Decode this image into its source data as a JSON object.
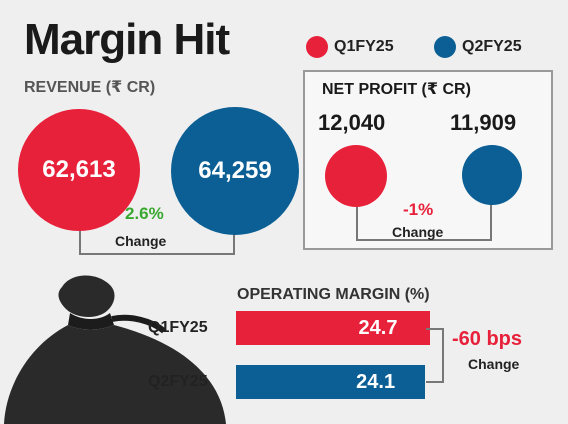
{
  "title": "Margin Hit",
  "legend": [
    {
      "label": "Q1FY25",
      "color": "#e8213b"
    },
    {
      "label": "Q2FY25",
      "color": "#0b5f94"
    }
  ],
  "revenue": {
    "heading": "REVENUE (₹ CR)",
    "q1_value": "62,613",
    "q2_value": "64,259",
    "change": "2.6%",
    "change_label": "Change",
    "change_color": "#3aa830"
  },
  "net_profit": {
    "heading": "NET PROFIT (₹ CR)",
    "q1_value": "12,040",
    "q2_value": "11,909",
    "change": "-1%",
    "change_label": "Change",
    "change_color": "#e8213b"
  },
  "operating_margin": {
    "heading": "OPERATING MARGIN (%)",
    "change": "-60 bps",
    "change_label": "Change",
    "change_color": "#e8213b"
  },
  "chart_data": [
    {
      "type": "bubble",
      "title": "REVENUE (₹ CR)",
      "categories": [
        "Q1FY25",
        "Q2FY25"
      ],
      "values": [
        62613,
        64259
      ],
      "change": "2.6%"
    },
    {
      "type": "bubble",
      "title": "NET PROFIT (₹ CR)",
      "categories": [
        "Q1FY25",
        "Q2FY25"
      ],
      "values": [
        12040,
        11909
      ],
      "change": "-1%"
    },
    {
      "type": "bar",
      "orientation": "horizontal",
      "title": "OPERATING MARGIN (%)",
      "categories": [
        "Q1FY25",
        "Q2FY25"
      ],
      "values": [
        24.7,
        24.1
      ],
      "colors": [
        "#e8213b",
        "#0b5f94"
      ],
      "change": "-60 bps"
    }
  ],
  "icons": {
    "decoration": "money-bag-icon"
  }
}
